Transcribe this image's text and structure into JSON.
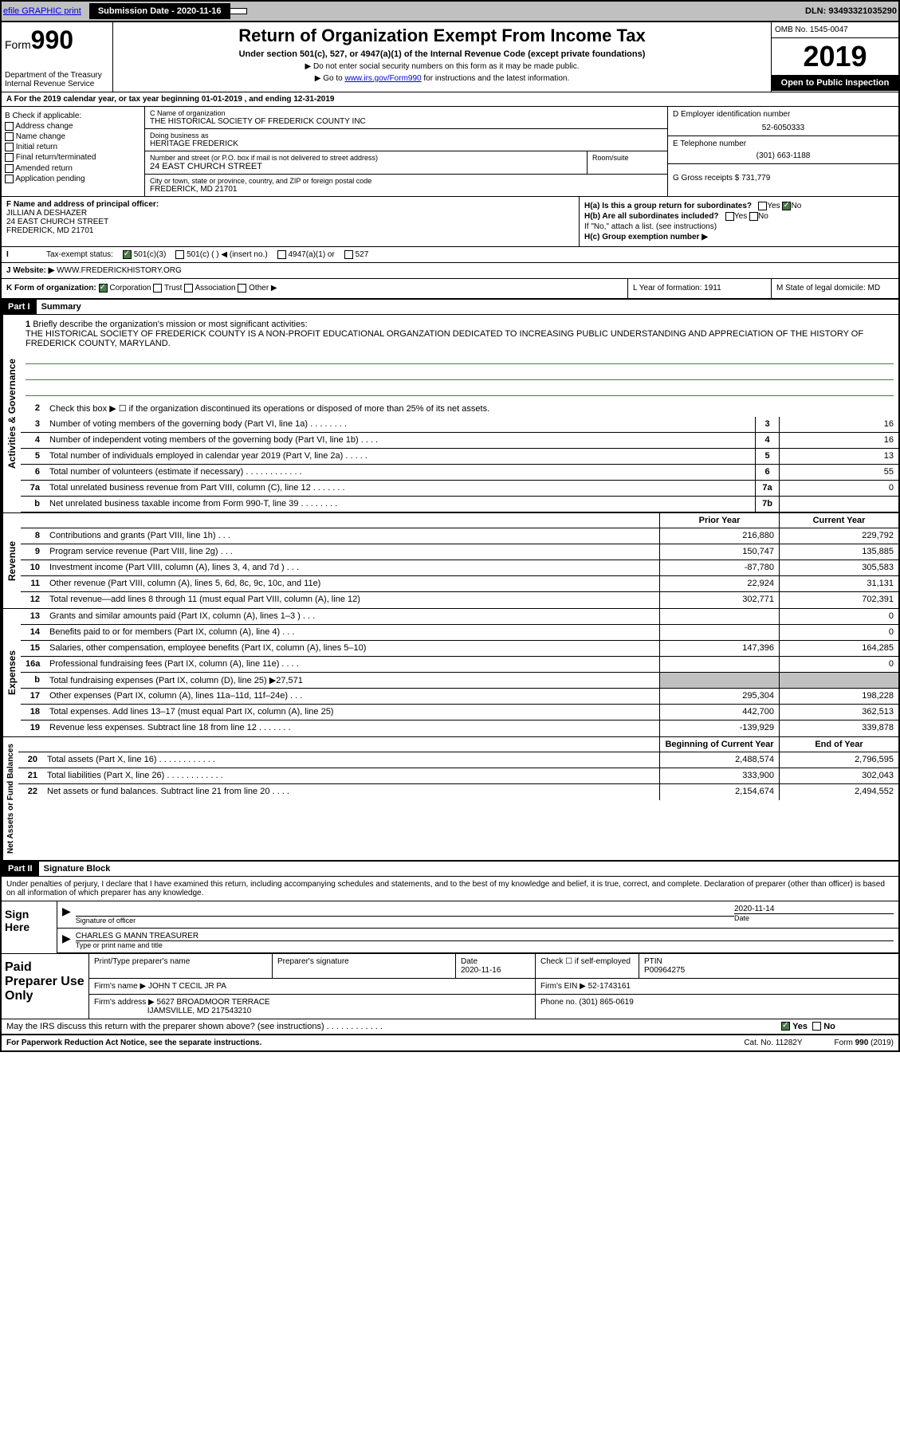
{
  "topbar": {
    "efile_text": "efile GRAPHIC print",
    "efile_bold": "GRAPHIC",
    "submission_label": "Submission Date - 2020-11-16",
    "dln": "DLN: 93493321035290"
  },
  "header": {
    "form_prefix": "Form",
    "form_num": "990",
    "dept": "Department of the Treasury Internal Revenue Service",
    "title": "Return of Organization Exempt From Income Tax",
    "subtitle": "Under section 501(c), 527, or 4947(a)(1) of the Internal Revenue Code (except private foundations)",
    "instr1": "▶ Do not enter social security numbers on this form as it may be made public.",
    "instr2_pre": "▶ Go to ",
    "instr2_link": "www.irs.gov/Form990",
    "instr2_post": " for instructions and the latest information.",
    "omb": "OMB No. 1545-0047",
    "year": "2019",
    "open": "Open to Public Inspection"
  },
  "line_a": "A For the 2019 calendar year, or tax year beginning 01-01-2019    , and ending 12-31-2019",
  "col_b": {
    "title": "B Check if applicable:",
    "opt1": "Address change",
    "opt2": "Name change",
    "opt3": "Initial return",
    "opt4": "Final return/terminated",
    "opt5": "Amended return",
    "opt6": "Application pending"
  },
  "col_c": {
    "name_label": "C Name of organization",
    "name": "THE HISTORICAL SOCIETY OF FREDERICK COUNTY INC",
    "dba_label": "Doing business as",
    "dba": "HERITAGE FREDERICK",
    "addr_label": "Number and street (or P.O. box if mail is not delivered to street address)",
    "addr": "24 EAST CHURCH STREET",
    "room_label": "Room/suite",
    "city_label": "City or town, state or province, country, and ZIP or foreign postal code",
    "city": "FREDERICK, MD  21701"
  },
  "col_d": {
    "ein_label": "D Employer identification number",
    "ein": "52-6050333",
    "phone_label": "E Telephone number",
    "phone": "(301) 663-1188",
    "gross_label": "G Gross receipts $ 731,779"
  },
  "section_f": {
    "f_label": "F  Name and address of principal officer:",
    "f_name": "JILLIAN A DESHAZER",
    "f_addr1": "24 EAST CHURCH STREET",
    "f_addr2": "FREDERICK, MD  21701",
    "ha_label": "H(a)  Is this a group return for subordinates?",
    "hb_label": "H(b)  Are all subordinates included?",
    "hb_note": "If \"No,\" attach a list. (see instructions)",
    "hc_label": "H(c)  Group exemption number ▶",
    "yes": "Yes",
    "no": "No"
  },
  "row_i": {
    "label": "Tax-exempt status:",
    "opt1": "501(c)(3)",
    "opt2": "501(c) (   ) ◀ (insert no.)",
    "opt3": "4947(a)(1) or",
    "opt4": "527"
  },
  "row_j": {
    "label": "J    Website: ▶",
    "val": "WWW.FREDERICKHISTORY.ORG"
  },
  "section_k": {
    "k_label": "K Form of organization:",
    "k_corp": "Corporation",
    "k_trust": "Trust",
    "k_assoc": "Association",
    "k_other": "Other ▶",
    "l_label": "L Year of formation: 1911",
    "m_label": "M State of legal domicile: MD"
  },
  "part1": {
    "header": "Part I",
    "title": "Summary",
    "side1": "Activities & Governance",
    "side2": "Revenue",
    "side3": "Expenses",
    "side4": "Net Assets or Fund Balances",
    "q1": "Briefly describe the organization's mission or most significant activities:",
    "mission": "THE HISTORICAL SOCIETY OF FREDERICK COUNTY IS A NON-PROFIT EDUCATIONAL ORGANZATION DEDICATED TO INCREASING PUBLIC UNDERSTANDING AND APPRECIATION OF THE HISTORY OF FREDERICK COUNTY, MARYLAND.",
    "q2": "Check this box ▶ ☐  if the organization discontinued its operations or disposed of more than 25% of its net assets.",
    "lines": [
      {
        "n": "3",
        "t": "Number of voting members of the governing body (Part VI, line 1a)   .    .    .    .    .    .    .    .",
        "box": "3",
        "v": "16"
      },
      {
        "n": "4",
        "t": "Number of independent voting members of the governing body (Part VI, line 1b)   .    .    .    .",
        "box": "4",
        "v": "16"
      },
      {
        "n": "5",
        "t": "Total number of individuals employed in calendar year 2019 (Part V, line 2a)   .    .    .    .    .",
        "box": "5",
        "v": "13"
      },
      {
        "n": "6",
        "t": "Total number of volunteers (estimate if necessary)    .    .    .    .    .    .    .    .    .    .    .    .",
        "box": "6",
        "v": "55"
      },
      {
        "n": "7a",
        "t": "Total unrelated business revenue from Part VIII, column (C), line 12   .    .    .    .    .    .    .",
        "box": "7a",
        "v": "0"
      },
      {
        "n": "b",
        "t": "Net unrelated business taxable income from Form 990-T, line 39   .    .    .    .    .    .    .    .",
        "box": "7b",
        "v": ""
      }
    ],
    "col_prior": "Prior Year",
    "col_current": "Current Year",
    "rev_lines": [
      {
        "n": "8",
        "t": "Contributions and grants (Part VIII, line 1h)    .    .    .",
        "p": "216,880",
        "c": "229,792"
      },
      {
        "n": "9",
        "t": "Program service revenue (Part VIII, line 2g)    .    .    .",
        "p": "150,747",
        "c": "135,885"
      },
      {
        "n": "10",
        "t": "Investment income (Part VIII, column (A), lines 3, 4, and 7d )    .    .    .",
        "p": "-87,780",
        "c": "305,583"
      },
      {
        "n": "11",
        "t": "Other revenue (Part VIII, column (A), lines 5, 6d, 8c, 9c, 10c, and 11e)",
        "p": "22,924",
        "c": "31,131"
      },
      {
        "n": "12",
        "t": "Total revenue—add lines 8 through 11 (must equal Part VIII, column (A), line 12)",
        "p": "302,771",
        "c": "702,391"
      }
    ],
    "exp_lines": [
      {
        "n": "13",
        "t": "Grants and similar amounts paid (Part IX, column (A), lines 1–3 )   .    .    .",
        "p": "",
        "c": "0"
      },
      {
        "n": "14",
        "t": "Benefits paid to or for members (Part IX, column (A), line 4)    .    .    .",
        "p": "",
        "c": "0"
      },
      {
        "n": "15",
        "t": "Salaries, other compensation, employee benefits (Part IX, column (A), lines 5–10)",
        "p": "147,396",
        "c": "164,285"
      },
      {
        "n": "16a",
        "t": "Professional fundraising fees (Part IX, column (A), line 11e)   .    .    .    .",
        "p": "",
        "c": "0"
      },
      {
        "n": "b",
        "t": "Total fundraising expenses (Part IX, column (D), line 25) ▶27,571",
        "p": "shaded",
        "c": "shaded"
      },
      {
        "n": "17",
        "t": "Other expenses (Part IX, column (A), lines 11a–11d, 11f–24e)    .    .    .",
        "p": "295,304",
        "c": "198,228"
      },
      {
        "n": "18",
        "t": "Total expenses. Add lines 13–17 (must equal Part IX, column (A), line 25)",
        "p": "442,700",
        "c": "362,513"
      },
      {
        "n": "19",
        "t": "Revenue less expenses. Subtract line 18 from line 12   .    .    .    .    .    .    .",
        "p": "-139,929",
        "c": "339,878"
      }
    ],
    "col_begin": "Beginning of Current Year",
    "col_end": "End of Year",
    "net_lines": [
      {
        "n": "20",
        "t": "Total assets (Part X, line 16)   .    .    .    .    .    .    .    .    .    .    .    .",
        "p": "2,488,574",
        "c": "2,796,595"
      },
      {
        "n": "21",
        "t": "Total liabilities (Part X, line 26)   .    .    .    .    .    .    .    .    .    .    .    .",
        "p": "333,900",
        "c": "302,043"
      },
      {
        "n": "22",
        "t": "Net assets or fund balances. Subtract line 21 from line 20   .    .    .    .",
        "p": "2,154,674",
        "c": "2,494,552"
      }
    ]
  },
  "part2": {
    "header": "Part II",
    "title": "Signature Block",
    "declaration": "Under penalties of perjury, I declare that I have examined this return, including accompanying schedules and statements, and to the best of my knowledge and belief, it is true, correct, and complete. Declaration of preparer (other than officer) is based on all information of which preparer has any knowledge.",
    "sign_here": "Sign Here",
    "sig_officer": "Signature of officer",
    "sig_date_label": "Date",
    "sig_date": "2020-11-14",
    "sig_name": "CHARLES G MANN  TREASURER",
    "sig_type": "Type or print name and title",
    "paid": "Paid Preparer Use Only",
    "prep_name_label": "Print/Type preparer's name",
    "prep_sig_label": "Preparer's signature",
    "prep_date_label": "Date",
    "prep_date": "2020-11-16",
    "prep_check": "Check ☐ if self-employed",
    "ptin_label": "PTIN",
    "ptin": "P00964275",
    "firm_name_label": "Firm's name    ▶",
    "firm_name": "JOHN T CECIL JR PA",
    "firm_ein_label": "Firm's EIN ▶",
    "firm_ein": "52-1743161",
    "firm_addr_label": "Firm's address ▶",
    "firm_addr1": "5627 BROADMOOR TERRACE",
    "firm_addr2": "IJAMSVILLE, MD  217543210",
    "firm_phone_label": "Phone no.",
    "firm_phone": "(301) 865-0619",
    "discuss": "May the IRS discuss this return with the preparer shown above? (see instructions)    .    .    .    .    .    .    .    .    .    .    .    .",
    "yes": "Yes",
    "no": "No"
  },
  "footer": {
    "note": "For Paperwork Reduction Act Notice, see the separate instructions.",
    "cat": "Cat. No. 11282Y",
    "form": "Form 990 (2019)"
  }
}
